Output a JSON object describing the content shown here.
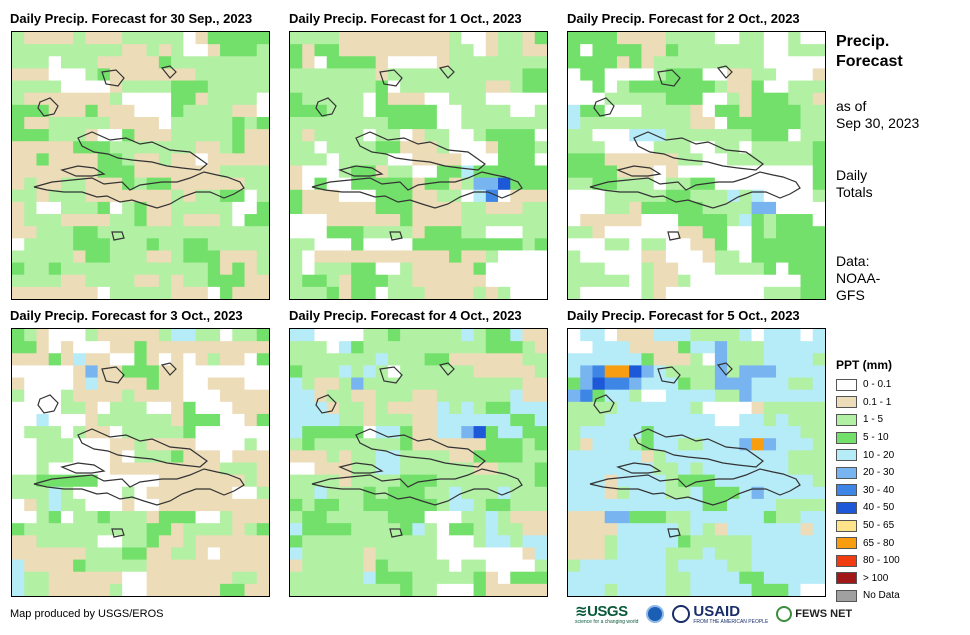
{
  "panels": [
    {
      "title": "Daily Precip. Forecast for 30 Sep., 2023"
    },
    {
      "title": "Daily Precip. Forecast for 1 Oct., 2023"
    },
    {
      "title": "Daily Precip. Forecast for 2 Oct., 2023"
    },
    {
      "title": "Daily Precip. Forecast for 3 Oct., 2023"
    },
    {
      "title": "Daily Precip. Forecast for 4 Oct., 2023"
    },
    {
      "title": "Daily Precip. Forecast for 5 Oct., 2023"
    }
  ],
  "sidebar": {
    "title_line1": "Precip.",
    "title_line2": "Forecast",
    "asof_line1": "as of",
    "asof_line2": "Sep 30, 2023",
    "daily_line1": "Daily",
    "daily_line2": "Totals",
    "data_line1": "Data:",
    "data_line2": "NOAA-",
    "data_line3": "GFS"
  },
  "legend": {
    "title": "PPT (mm)",
    "items": [
      {
        "label": "0 - 0.1",
        "color": "#ffffff"
      },
      {
        "label": "0.1 - 1",
        "color": "#ecdcb8"
      },
      {
        "label": "1 - 5",
        "color": "#b2f0a4"
      },
      {
        "label": "5 - 10",
        "color": "#72e06a"
      },
      {
        "label": "10 - 20",
        "color": "#b6ecf8"
      },
      {
        "label": "20 - 30",
        "color": "#78b4f0"
      },
      {
        "label": "30 - 40",
        "color": "#3e86e6"
      },
      {
        "label": "40 - 50",
        "color": "#1c58d8"
      },
      {
        "label": "50 - 65",
        "color": "#fde48a"
      },
      {
        "label": "65 - 80",
        "color": "#f89c10"
      },
      {
        "label": "80 - 100",
        "color": "#f03c10"
      },
      {
        "label": "> 100",
        "color": "#a01818"
      },
      {
        "label": "No Data",
        "color": "#a0a0a0"
      }
    ]
  },
  "footer": {
    "credit": "Map produced by USGS/EROS",
    "logo_usgs": "≋USGS",
    "logo_usgs_tagline": "science for a changing world",
    "logo_usaid": "USAID",
    "logo_usaid_tagline": "FROM THE AMERICAN PEOPLE",
    "logo_fews": "FEWS NET"
  }
}
